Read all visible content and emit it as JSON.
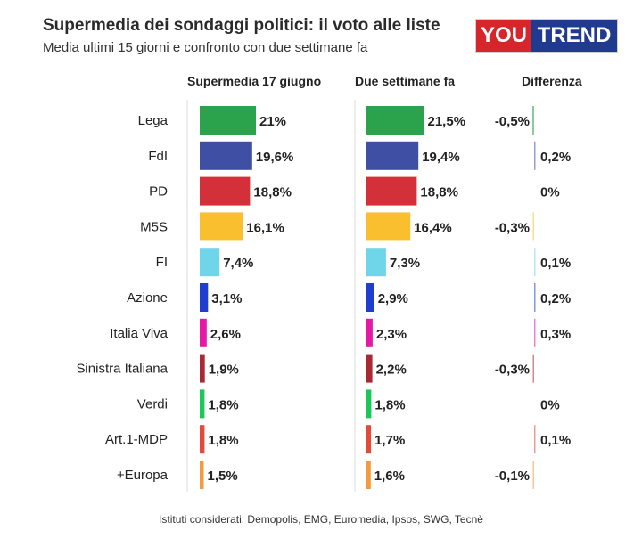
{
  "header": {
    "title": "Supermedia dei sondaggi politici: il voto alle liste",
    "subtitle": "Media ultimi 15 giorni e confronto con due settimane fa",
    "logo_you": "YOU",
    "logo_trend": "TREND"
  },
  "columns": {
    "current": "Supermedia 17 giugno",
    "previous": "Due settimane fa",
    "difference": "Differenza"
  },
  "footer": "Istituti considerati: Demopolis, EMG, Euromedia, Ipsos, SWG, Tecnè",
  "chart_data": {
    "type": "bar",
    "orientation": "horizontal",
    "categories": [
      "Lega",
      "FdI",
      "PD",
      "M5S",
      "FI",
      "Azione",
      "Italia Viva",
      "Sinistra Italiana",
      "Verdi",
      "Art.1-MDP",
      "+Europa"
    ],
    "colors": [
      "#2ba24c",
      "#3f4fa3",
      "#d3303a",
      "#f9bf2f",
      "#6fd6ea",
      "#1f3ed1",
      "#e31aa6",
      "#a82834",
      "#1cc65a",
      "#e04b3c",
      "#f39a3c"
    ],
    "series": [
      {
        "name": "Supermedia 17 giugno",
        "values": [
          21,
          19.6,
          18.8,
          16.1,
          7.4,
          3.1,
          2.6,
          1.9,
          1.8,
          1.8,
          1.5
        ],
        "labels": [
          "21%",
          "19,6%",
          "18,8%",
          "16,1%",
          "7,4%",
          "3,1%",
          "2,6%",
          "1,9%",
          "1,8%",
          "1,8%",
          "1,5%"
        ]
      },
      {
        "name": "Due settimane fa",
        "values": [
          21.5,
          19.4,
          18.8,
          16.4,
          7.3,
          2.9,
          2.3,
          2.2,
          1.8,
          1.7,
          1.6
        ],
        "labels": [
          "21,5%",
          "19,4%",
          "18,8%",
          "16,4%",
          "7,3%",
          "2,9%",
          "2,3%",
          "2,2%",
          "1,8%",
          "1,7%",
          "1,6%"
        ]
      },
      {
        "name": "Differenza",
        "values": [
          -0.5,
          0.2,
          0,
          -0.3,
          0.1,
          0.2,
          0.3,
          -0.3,
          0,
          0.1,
          -0.1
        ],
        "labels": [
          "-0,5%",
          "0,2%",
          "0%",
          "-0,3%",
          "0,1%",
          "0,2%",
          "0,3%",
          "-0,3%",
          "0%",
          "0,1%",
          "-0,1%"
        ]
      }
    ]
  }
}
